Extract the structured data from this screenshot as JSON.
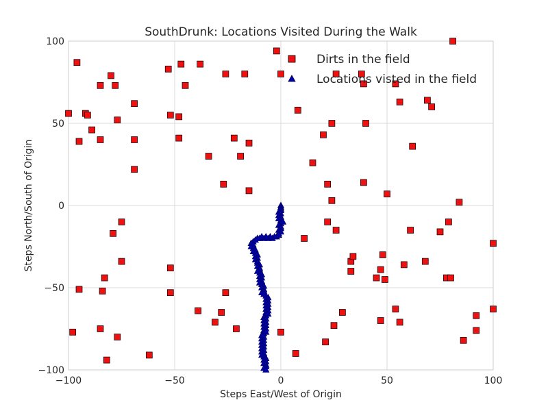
{
  "chart_data": {
    "type": "scatter",
    "title": "SouthDrunk: Locations Visited During the Walk",
    "xlabel": "Steps East/West of Origin",
    "ylabel": "Steps North/South of Origin",
    "xlim": [
      -100,
      100
    ],
    "ylim": [
      -100,
      100
    ],
    "xticks": [
      -100,
      -50,
      0,
      50,
      100
    ],
    "yticks": [
      -100,
      -50,
      0,
      50,
      100
    ],
    "xtick_labels": [
      "−100",
      "−50",
      "0",
      "50",
      "100"
    ],
    "ytick_labels": [
      "−100",
      "−50",
      "0",
      "50",
      "100"
    ],
    "grid": true,
    "legend_position": "top-right",
    "series": [
      {
        "name": "Dirts in the field",
        "marker": "square",
        "color": "#ee1111",
        "edge_color": "#000000",
        "points": [
          [
            -100,
            56
          ],
          [
            -96,
            87
          ],
          [
            -95,
            39
          ],
          [
            -92,
            56
          ],
          [
            -91,
            55
          ],
          [
            -89,
            46
          ],
          [
            -85,
            73
          ],
          [
            -85,
            40
          ],
          [
            -80,
            79
          ],
          [
            -78,
            73
          ],
          [
            -77,
            52
          ],
          [
            -69,
            62
          ],
          [
            -69,
            40
          ],
          [
            -69,
            22
          ],
          [
            -53,
            83
          ],
          [
            -52,
            55
          ],
          [
            -48,
            54
          ],
          [
            -48,
            41
          ],
          [
            -47,
            86
          ],
          [
            -45,
            73
          ],
          [
            -38,
            86
          ],
          [
            -34,
            30
          ],
          [
            -27,
            13
          ],
          [
            -26,
            80
          ],
          [
            -22,
            41
          ],
          [
            -19,
            30
          ],
          [
            -17,
            80
          ],
          [
            -15,
            38
          ],
          [
            -15,
            9
          ],
          [
            -2,
            94
          ],
          [
            0,
            80
          ],
          [
            8,
            58
          ],
          [
            15,
            26
          ],
          [
            20,
            43
          ],
          [
            22,
            13
          ],
          [
            24,
            50
          ],
          [
            24,
            3
          ],
          [
            26,
            80
          ],
          [
            38,
            80
          ],
          [
            39,
            74
          ],
          [
            39,
            14
          ],
          [
            40,
            50
          ],
          [
            50,
            7
          ],
          [
            54,
            74
          ],
          [
            56,
            63
          ],
          [
            62,
            36
          ],
          [
            69,
            64
          ],
          [
            71,
            60
          ],
          [
            81,
            100
          ],
          [
            84,
            2
          ],
          [
            -79,
            -17
          ],
          [
            -75,
            -10
          ],
          [
            -75,
            -34
          ],
          [
            -83,
            -44
          ],
          [
            -84,
            -52
          ],
          [
            -95,
            -51
          ],
          [
            -98,
            -77
          ],
          [
            -85,
            -75
          ],
          [
            -77,
            -80
          ],
          [
            -82,
            -94
          ],
          [
            -62,
            -91
          ],
          [
            -52,
            -38
          ],
          [
            -52,
            -53
          ],
          [
            -39,
            -64
          ],
          [
            -31,
            -71
          ],
          [
            -28,
            -65
          ],
          [
            -26,
            -53
          ],
          [
            -21,
            -75
          ],
          [
            0,
            -77
          ],
          [
            7,
            -90
          ],
          [
            11,
            -20
          ],
          [
            21,
            -83
          ],
          [
            22,
            -10
          ],
          [
            25,
            -73
          ],
          [
            26,
            -15
          ],
          [
            29,
            -65
          ],
          [
            33,
            -34
          ],
          [
            33,
            -40
          ],
          [
            34,
            -31
          ],
          [
            45,
            -44
          ],
          [
            47,
            -39
          ],
          [
            47,
            -70
          ],
          [
            48,
            -30
          ],
          [
            49,
            -45
          ],
          [
            54,
            -63
          ],
          [
            56,
            -71
          ],
          [
            58,
            -36
          ],
          [
            61,
            -15
          ],
          [
            68,
            -34
          ],
          [
            75,
            -16
          ],
          [
            78,
            -44
          ],
          [
            79,
            -10
          ],
          [
            80,
            -44
          ],
          [
            86,
            -82
          ],
          [
            92,
            -67
          ],
          [
            92,
            -76
          ],
          [
            100,
            -23
          ],
          [
            100,
            -63
          ]
        ]
      },
      {
        "name": "Locations visted in the field",
        "marker": "triangle",
        "color": "#0000aa",
        "edge_color": "#000055",
        "points": [
          [
            0,
            0
          ],
          [
            0,
            -1
          ],
          [
            0,
            -2
          ],
          [
            0,
            -3
          ],
          [
            -1,
            -4
          ],
          [
            0,
            -5
          ],
          [
            -1,
            -6
          ],
          [
            0,
            -7
          ],
          [
            -1,
            -8
          ],
          [
            0,
            -9
          ],
          [
            1,
            -10
          ],
          [
            0,
            -11
          ],
          [
            -1,
            -12
          ],
          [
            0,
            -13
          ],
          [
            0,
            -14
          ],
          [
            -1,
            -15
          ],
          [
            0,
            -16
          ],
          [
            -1,
            -17
          ],
          [
            -1,
            -18
          ],
          [
            -2,
            -19
          ],
          [
            -3,
            -19
          ],
          [
            -4,
            -20
          ],
          [
            -5,
            -19
          ],
          [
            -6,
            -20
          ],
          [
            -7,
            -19
          ],
          [
            -8,
            -20
          ],
          [
            -9,
            -19
          ],
          [
            -10,
            -20
          ],
          [
            -11,
            -20
          ],
          [
            -12,
            -21
          ],
          [
            -13,
            -22
          ],
          [
            -14,
            -23
          ],
          [
            -13,
            -24
          ],
          [
            -14,
            -25
          ],
          [
            -13,
            -26
          ],
          [
            -12,
            -27
          ],
          [
            -13,
            -28
          ],
          [
            -12,
            -29
          ],
          [
            -11,
            -30
          ],
          [
            -12,
            -31
          ],
          [
            -11,
            -32
          ],
          [
            -12,
            -33
          ],
          [
            -11,
            -34
          ],
          [
            -11,
            -35
          ],
          [
            -10,
            -36
          ],
          [
            -11,
            -37
          ],
          [
            -10,
            -38
          ],
          [
            -10,
            -39
          ],
          [
            -11,
            -40
          ],
          [
            -10,
            -41
          ],
          [
            -9,
            -42
          ],
          [
            -10,
            -43
          ],
          [
            -9,
            -44
          ],
          [
            -10,
            -45
          ],
          [
            -9,
            -46
          ],
          [
            -10,
            -47
          ],
          [
            -9,
            -48
          ],
          [
            -8,
            -49
          ],
          [
            -9,
            -50
          ],
          [
            -8,
            -51
          ],
          [
            -8,
            -52
          ],
          [
            -9,
            -53
          ],
          [
            -8,
            -54
          ],
          [
            -7,
            -55
          ],
          [
            -6,
            -56
          ],
          [
            -7,
            -57
          ],
          [
            -6,
            -58
          ],
          [
            -7,
            -59
          ],
          [
            -6,
            -60
          ],
          [
            -7,
            -61
          ],
          [
            -6,
            -62
          ],
          [
            -7,
            -63
          ],
          [
            -6,
            -64
          ],
          [
            -7,
            -65
          ],
          [
            -6,
            -66
          ],
          [
            -7,
            -67
          ],
          [
            -8,
            -68
          ],
          [
            -7,
            -69
          ],
          [
            -8,
            -70
          ],
          [
            -7,
            -71
          ],
          [
            -8,
            -72
          ],
          [
            -7,
            -73
          ],
          [
            -8,
            -74
          ],
          [
            -7,
            -75
          ],
          [
            -8,
            -76
          ],
          [
            -7,
            -77
          ],
          [
            -8,
            -78
          ],
          [
            -9,
            -79
          ],
          [
            -8,
            -80
          ],
          [
            -9,
            -81
          ],
          [
            -8,
            -82
          ],
          [
            -9,
            -83
          ],
          [
            -8,
            -84
          ],
          [
            -9,
            -85
          ],
          [
            -8,
            -86
          ],
          [
            -9,
            -87
          ],
          [
            -8,
            -88
          ],
          [
            -9,
            -89
          ],
          [
            -8,
            -90
          ],
          [
            -9,
            -91
          ],
          [
            -8,
            -92
          ],
          [
            -7,
            -93
          ],
          [
            -8,
            -94
          ],
          [
            -7,
            -95
          ],
          [
            -8,
            -96
          ],
          [
            -7,
            -97
          ],
          [
            -7,
            -98
          ],
          [
            -8,
            -99
          ],
          [
            -7,
            -100
          ]
        ]
      }
    ]
  }
}
